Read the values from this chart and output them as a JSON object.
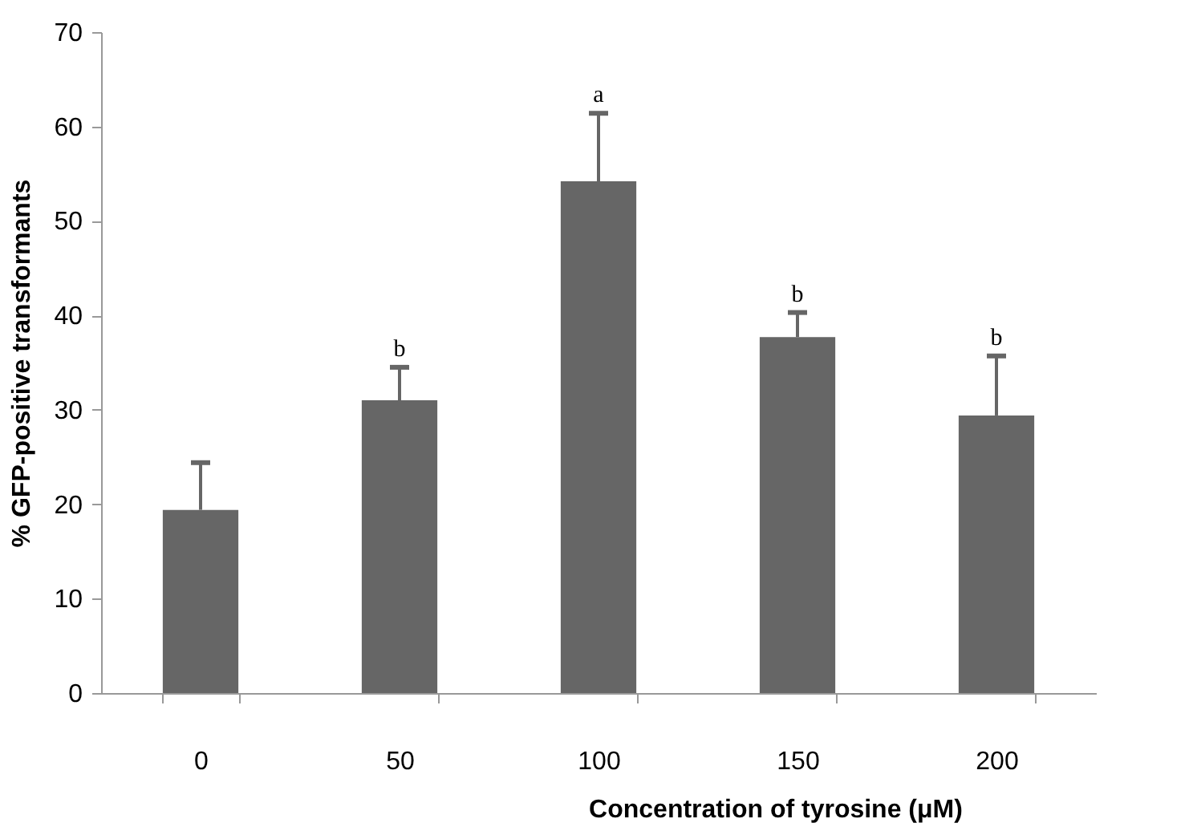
{
  "chart_data": {
    "type": "bar",
    "xlabel": "Concentration of tyrosine (μM)",
    "ylabel": "% GFP-positive transformants",
    "categories": [
      "0",
      "50",
      "100",
      "150",
      "200"
    ],
    "values": [
      19.4,
      31.0,
      54.2,
      37.7,
      29.4
    ],
    "errors": [
      [
        19.4,
        24.4
      ],
      [
        31.0,
        34.5
      ],
      [
        54.2,
        61.4
      ],
      [
        37.7,
        40.3
      ],
      [
        29.4,
        35.7
      ]
    ],
    "color": "#666666",
    "ylim": [
      0,
      70
    ],
    "yticks": [
      0,
      10,
      20,
      30,
      40,
      50,
      60,
      70
    ],
    "annotations": [
      {
        "text": "b",
        "x": "50",
        "y": 34.5
      },
      {
        "text": "a",
        "x": "100",
        "y": 61.4
      },
      {
        "text": "b",
        "x": "150",
        "y": 40.3
      },
      {
        "text": "b",
        "x": "200",
        "y": 35.7
      }
    ]
  }
}
